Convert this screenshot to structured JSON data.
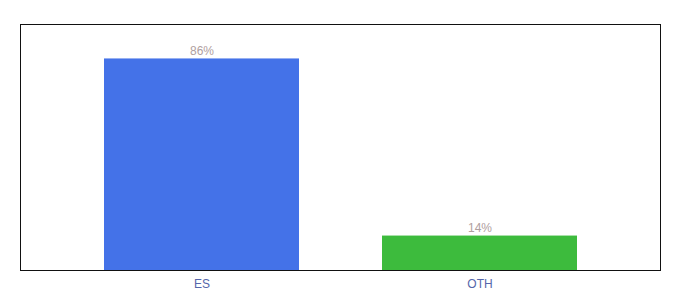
{
  "chart_data": {
    "type": "bar",
    "categories": [
      "ES",
      "OTH"
    ],
    "values": [
      86,
      14
    ],
    "value_labels": [
      "86%",
      "14%"
    ],
    "colors": [
      "#4472e8",
      "#3dbb3d"
    ],
    "ylim": [
      0,
      100
    ],
    "data_labels": true,
    "grid": false,
    "tick_labels": "x"
  }
}
